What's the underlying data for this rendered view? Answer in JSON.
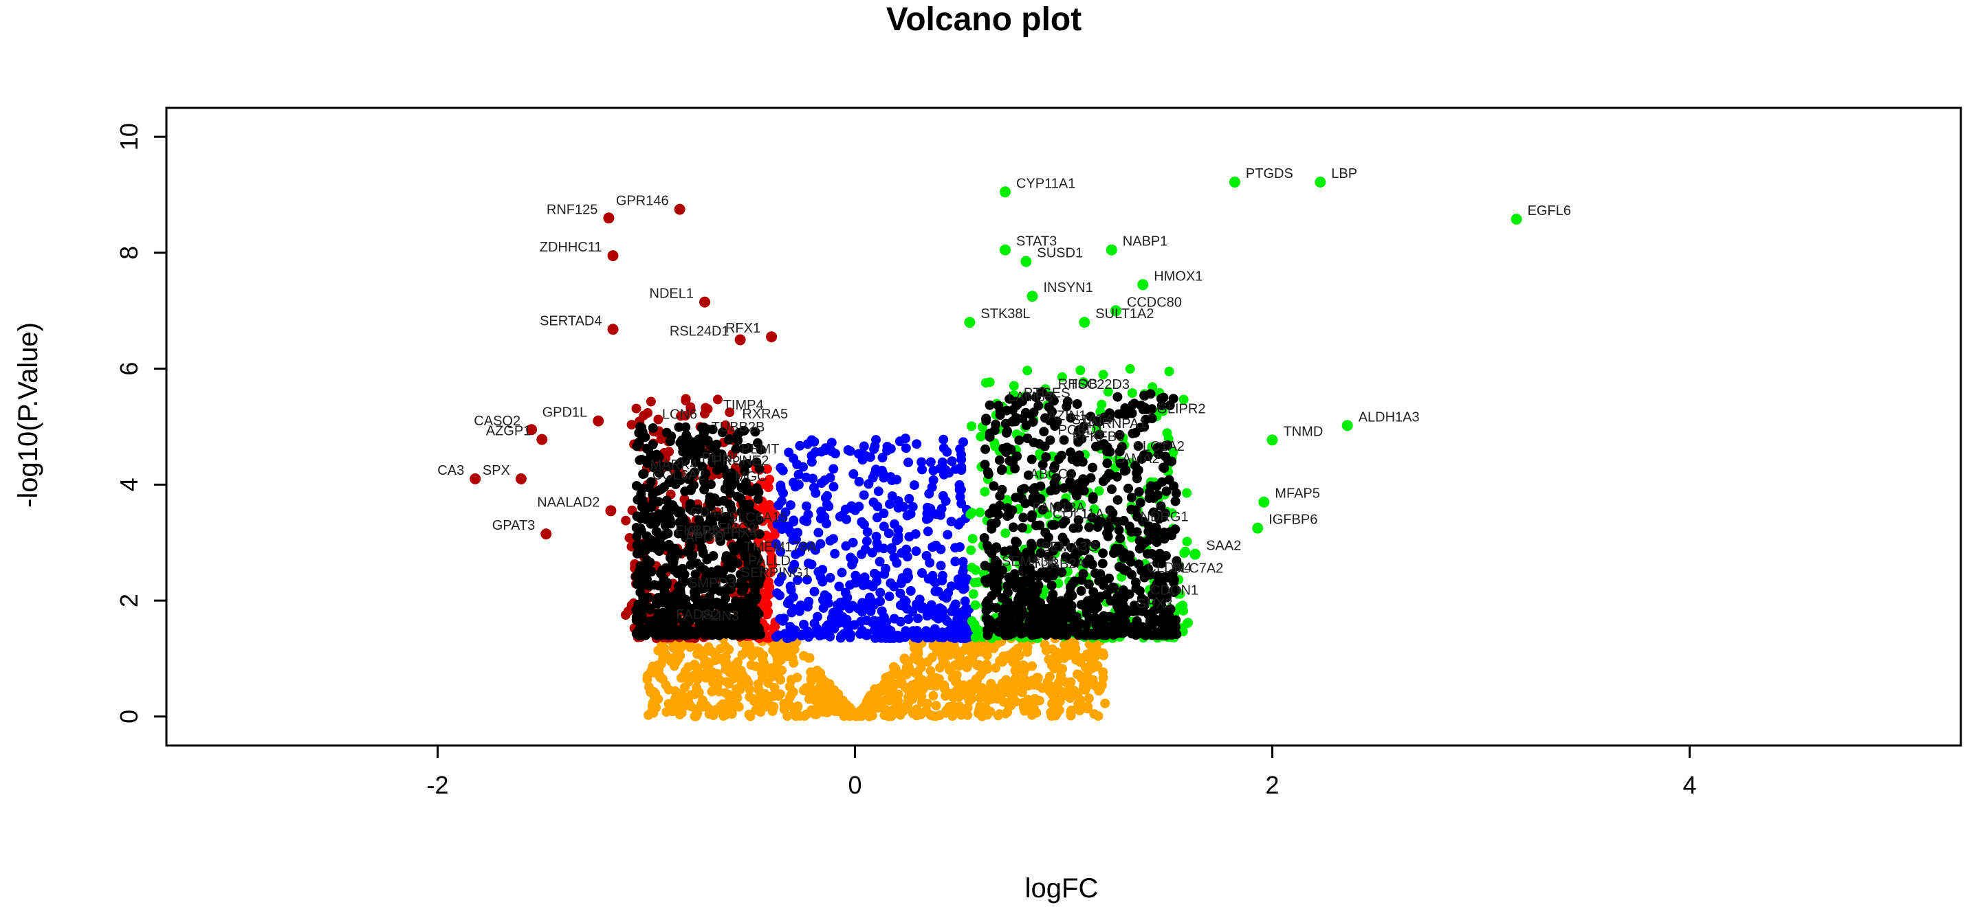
{
  "chart_data": {
    "type": "scatter",
    "title": "Volcano plot",
    "xlabel": "logFC",
    "ylabel": "-log10(P.Value)",
    "xlim": [
      -3.3,
      5.3
    ],
    "ylim": [
      -0.5,
      10.5
    ],
    "x_ticks": [
      -2,
      0,
      2,
      4
    ],
    "y_ticks": [
      0,
      2,
      4,
      6,
      8,
      10
    ],
    "x_tick_labels": [
      "-2",
      "0",
      "2",
      "4"
    ],
    "y_tick_labels": [
      "0",
      "2",
      "4",
      "6",
      "8",
      "10"
    ],
    "grid": false,
    "legend": "none",
    "colors": {
      "not_significant": "#ffa500",
      "down_small": "#ff0000",
      "down_strong": "#b00000",
      "up_small": "#0000ff",
      "up_strong": "#00ee00",
      "label_dots": "#000000"
    },
    "background_clouds": [
      {
        "group": "not_significant",
        "color": "#ffa500",
        "x_range": [
          -1.0,
          1.2
        ],
        "y_range": [
          0,
          1.35
        ],
        "count": 900
      },
      {
        "group": "down_small",
        "color": "#ff0000",
        "x_range": [
          -0.55,
          -0.38
        ],
        "y_range": [
          1.35,
          4.3
        ],
        "count": 160
      },
      {
        "group": "up_small",
        "color": "#0000ff",
        "x_range": [
          -0.38,
          0.55
        ],
        "y_range": [
          1.35,
          4.8
        ],
        "count": 500
      },
      {
        "group": "down_strong",
        "color": "#b00000",
        "x_range": [
          -1.1,
          -0.55
        ],
        "y_range": [
          1.35,
          5.5
        ],
        "count": 200
      },
      {
        "group": "up_strong",
        "color": "#00ee00",
        "x_range": [
          0.55,
          1.6
        ],
        "y_range": [
          1.35,
          6.0
        ],
        "count": 320
      },
      {
        "group": "label_dots",
        "color": "#000000",
        "x_range": [
          -1.05,
          -0.45
        ],
        "y_range": [
          1.4,
          5.0
        ],
        "count": 750
      },
      {
        "group": "label_dots",
        "color": "#000000",
        "x_range": [
          0.62,
          1.55
        ],
        "y_range": [
          1.4,
          5.6
        ],
        "count": 800
      }
    ],
    "labeled_points": [
      {
        "label": "PTGDS",
        "x": 1.82,
        "y": 9.22,
        "color": "#00ee00"
      },
      {
        "label": "LBP",
        "x": 2.23,
        "y": 9.22,
        "color": "#00ee00"
      },
      {
        "label": "EGFL6",
        "x": 3.17,
        "y": 8.58,
        "color": "#00ee00"
      },
      {
        "label": "CYP11A1",
        "x": 0.72,
        "y": 9.05,
        "color": "#00ee00"
      },
      {
        "label": "STAT3",
        "x": 0.72,
        "y": 8.05,
        "color": "#00ee00"
      },
      {
        "label": "SUSD1",
        "x": 0.82,
        "y": 7.85,
        "color": "#00ee00"
      },
      {
        "label": "NABP1",
        "x": 1.23,
        "y": 8.05,
        "color": "#00ee00"
      },
      {
        "label": "HMOX1",
        "x": 1.38,
        "y": 7.45,
        "color": "#00ee00"
      },
      {
        "label": "INSYN1",
        "x": 0.85,
        "y": 7.25,
        "color": "#00ee00"
      },
      {
        "label": "CCDC80",
        "x": 1.25,
        "y": 7.0,
        "color": "#00ee00"
      },
      {
        "label": "SULT1A2",
        "x": 1.1,
        "y": 6.8,
        "color": "#00ee00"
      },
      {
        "label": "STK38L",
        "x": 0.55,
        "y": 6.8,
        "color": "#00ee00"
      },
      {
        "label": "ALDH1A3",
        "x": 2.36,
        "y": 5.02,
        "color": "#00ee00"
      },
      {
        "label": "TNMD",
        "x": 2.0,
        "y": 4.77,
        "color": "#00ee00"
      },
      {
        "label": "MFAP5",
        "x": 1.96,
        "y": 3.7,
        "color": "#00ee00"
      },
      {
        "label": "IGFBP6",
        "x": 1.93,
        "y": 3.25,
        "color": "#00ee00"
      },
      {
        "label": "SAA2",
        "x": 1.63,
        "y": 2.8,
        "color": "#00ee00"
      },
      {
        "label": "RNF125",
        "x": -1.18,
        "y": 8.6,
        "color": "#b00000"
      },
      {
        "label": "GPR146",
        "x": -0.84,
        "y": 8.75,
        "color": "#b00000"
      },
      {
        "label": "ZDHHC11",
        "x": -1.16,
        "y": 7.95,
        "color": "#b00000"
      },
      {
        "label": "SERTAD4",
        "x": -1.16,
        "y": 6.68,
        "color": "#b00000"
      },
      {
        "label": "CA3",
        "x": -1.82,
        "y": 4.1,
        "color": "#b00000"
      },
      {
        "label": "SPX",
        "x": -1.6,
        "y": 4.1,
        "color": "#b00000"
      },
      {
        "label": "NAALAD2",
        "x": -1.17,
        "y": 3.55,
        "color": "#b00000"
      },
      {
        "label": "GPAT3",
        "x": -1.48,
        "y": 3.15,
        "color": "#b00000"
      },
      {
        "label": "CASQ2",
        "x": -1.55,
        "y": 4.95,
        "color": "#b00000"
      },
      {
        "label": "AZGP1",
        "x": -1.5,
        "y": 4.78,
        "color": "#b00000"
      },
      {
        "label": "GPD1L",
        "x": -1.23,
        "y": 5.1,
        "color": "#b00000"
      },
      {
        "label": "RSL24D1",
        "x": -0.55,
        "y": 6.5,
        "color": "#b00000"
      },
      {
        "label": "RFX1",
        "x": -0.4,
        "y": 6.55,
        "color": "#b00000"
      },
      {
        "label": "NDEL1",
        "x": -0.72,
        "y": 7.15,
        "color": "#b00000"
      }
    ],
    "crowded_text_labels": [
      "PLIN3",
      "PCBD1",
      "TMEM178A",
      "SEMA3G",
      "MGC",
      "GLIPR2",
      "PALLD",
      "AZIN1",
      "TUBB2B",
      "LAMB3",
      "CD44",
      "COL11A1",
      "COL6A2",
      "ABCC3",
      "PEMT",
      "TUBB2A",
      "LCN6",
      "SLC7A2",
      "SLC6A15",
      "CLDN4",
      "APOD",
      "PTGES",
      "SERPING1",
      "CDON1",
      "PRUNE2",
      "HNRNPA1",
      "ZFHX4",
      "TSC22D3",
      "FKBP5",
      "NDRG1",
      "FADS2",
      "SLC1A2",
      "PLIN5",
      "FAM13A",
      "MARK4",
      "STAT4",
      "SMPD3",
      "GPX3",
      "TIMP4",
      "PFKFB3",
      "RXRA5",
      "SEMA3B",
      "ALPL",
      "LAMA2",
      "FMO2",
      "RHOB"
    ]
  }
}
